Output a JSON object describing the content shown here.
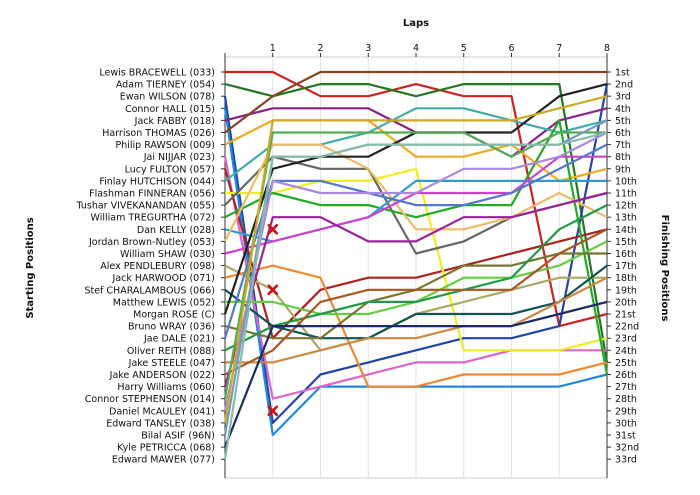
{
  "chart_data": {
    "type": "line",
    "title": "",
    "xlabel": "Laps",
    "ylabel_left": "Starting Positions",
    "ylabel_right": "Finishing Positions",
    "x": [
      0,
      1,
      2,
      3,
      4,
      5,
      6,
      7,
      8
    ],
    "x_tick_labels": [
      "1",
      "2",
      "3",
      "4",
      "5",
      "6",
      "7",
      "8"
    ],
    "ylim": [
      1,
      33
    ],
    "y_inverted": true,
    "grid": true,
    "starting_positions": [
      "Lewis BRACEWELL (033)",
      "Adam TIERNEY (054)",
      "Ewan WILSON (078)",
      "Connor HALL (015)",
      "Jack FABBY (018)",
      "Harrison THOMAS (026)",
      "Philip RAWSON (009)",
      "Jai NIJJAR (023)",
      "Lucy FULTON (057)",
      "Finlay HUTCHISON (044)",
      "Flashman FINNERAN (056)",
      "Tushar VIVEKANANDAN (055)",
      "William TREGURTHA (072)",
      "Dan KELLY (028)",
      "Jordan Brown-Nutley (053)",
      "William SHAW (030)",
      "Alex PENDLEBURY (098)",
      "Jack HARWOOD (071)",
      "Stef CHARALAMBOUS (066)",
      "Matthew LEWIS (052)",
      "Morgan ROSE (C)",
      "Bruno WRAY (036)",
      "Jae DALE (021)",
      "Oliver REITH (088)",
      "Jake STEELE (047)",
      "Jake ANDERSON (022)",
      "Harry Williams (060)",
      "Connor STEPHENSON (014)",
      "Daniel McAULEY (041)",
      "Edward TANSLEY (038)",
      "Bilal ASIF (96N)",
      "Kyle PETRICCA (068)",
      "Edward MAWER (077)"
    ],
    "finishing_labels": [
      "1st",
      "2nd",
      "3rd",
      "4th",
      "5th",
      "6th",
      "7th",
      "8th",
      "9th",
      "10th",
      "11th",
      "12th",
      "13th",
      "14th",
      "15th",
      "16th",
      "17th",
      "18th",
      "19th",
      "20th",
      "21st",
      "22nd",
      "23rd",
      "24th",
      "25th",
      "26th",
      "27th",
      "28th",
      "29th",
      "30th",
      "31st",
      "32nd",
      "33rd"
    ],
    "series": [
      {
        "color": "#cc2222",
        "values": [
          1,
          1,
          3,
          3,
          2,
          3,
          3,
          22,
          21
        ]
      },
      {
        "color": "#227722",
        "values": [
          2,
          3,
          2,
          2,
          3,
          2,
          2,
          2,
          25
        ]
      },
      {
        "color": "#2244aa",
        "values": [
          3,
          30,
          26,
          25,
          24,
          23,
          23,
          22,
          2
        ]
      },
      {
        "color": "#2288dd",
        "values": [
          4,
          31,
          27,
          27,
          27,
          27,
          27,
          27,
          26
        ]
      },
      {
        "color": "#882288",
        "values": [
          5,
          4,
          4,
          4,
          6,
          6,
          8,
          5,
          4
        ]
      },
      {
        "color": "#884422",
        "values": [
          6,
          3,
          1,
          1,
          1,
          1,
          1,
          1,
          1
        ]
      },
      {
        "color": "#eeaa22",
        "values": [
          7,
          5,
          5,
          5,
          8,
          8,
          7,
          10,
          9
        ]
      },
      {
        "color": "#dd66cc",
        "values": [
          8,
          28,
          27,
          26,
          25,
          25,
          24,
          24,
          24
        ]
      },
      {
        "color": "#aa2222",
        "values": [
          9,
          23,
          19,
          18,
          18,
          17,
          16,
          15,
          14
        ]
      },
      {
        "color": "#44aaaa",
        "values": [
          10,
          7,
          7,
          6,
          4,
          4,
          5,
          6,
          5
        ]
      },
      {
        "color": "#eeee22",
        "values": [
          11,
          11,
          10,
          10,
          9,
          24,
          24,
          24,
          23
        ]
      },
      {
        "color": "#666666",
        "values": [
          12,
          8,
          9,
          9,
          16,
          15,
          13,
          12,
          11
        ]
      },
      {
        "color": "#22aa22",
        "values": [
          13,
          11,
          12,
          12,
          13,
          12,
          12,
          5,
          26
        ]
      },
      {
        "color": "#3399cc",
        "values": [
          14,
          15,
          14,
          13,
          10,
          10,
          10,
          10,
          10
        ]
      },
      {
        "color": "#eebb66",
        "values": [
          15,
          7,
          7,
          9,
          14,
          14,
          13,
          11,
          13
        ]
      },
      {
        "color": "#cc44cc",
        "values": [
          16,
          15,
          14,
          13,
          11,
          11,
          11,
          8,
          8
        ]
      },
      {
        "color": "#aaaa66",
        "values": [
          17,
          19,
          24,
          23,
          21,
          20,
          19,
          18,
          18
        ]
      },
      {
        "color": "#ee8833",
        "values": [
          18,
          17,
          18,
          27,
          27,
          26,
          26,
          26,
          25
        ]
      },
      {
        "color": "#115555",
        "values": [
          19,
          22,
          23,
          23,
          21,
          21,
          21,
          20,
          17
        ]
      },
      {
        "color": "#66cc44",
        "values": [
          20,
          20,
          21,
          21,
          20,
          18,
          18,
          17,
          15
        ]
      },
      {
        "color": "#222222",
        "values": [
          21,
          9,
          8,
          8,
          6,
          6,
          6,
          3,
          2
        ]
      },
      {
        "color": "#777733",
        "values": [
          22,
          23,
          23,
          20,
          19,
          17,
          17,
          16,
          16
        ]
      },
      {
        "color": "#5577cc",
        "values": [
          23,
          10,
          10,
          11,
          12,
          12,
          11,
          9,
          7
        ]
      },
      {
        "color": "#229944",
        "values": [
          24,
          22,
          21,
          20,
          20,
          19,
          18,
          14,
          12
        ]
      },
      {
        "color": "#cc8844",
        "values": [
          25,
          25,
          24,
          23,
          23,
          22,
          22,
          20,
          18
        ]
      },
      {
        "color": "#aa5522",
        "values": [
          26,
          24,
          20,
          19,
          19,
          19,
          19,
          16,
          14
        ]
      },
      {
        "color": "#992299",
        "values": [
          27,
          13,
          13,
          15,
          15,
          13,
          13,
          12,
          11
        ]
      },
      {
        "color": "#55aa55",
        "values": [
          28,
          6,
          6,
          6,
          6,
          6,
          8,
          6,
          6
        ]
      },
      {
        "color": "#aa88dd",
        "values": [
          29,
          10,
          11,
          11,
          11,
          9,
          9,
          8,
          6
        ]
      },
      {
        "color": "#ccaa22",
        "values": [
          30,
          5,
          5,
          5,
          5,
          5,
          5,
          4,
          3
        ]
      },
      {
        "color": "#7799bb",
        "values": [
          31,
          8,
          8,
          7,
          7,
          7,
          7,
          7,
          5
        ]
      },
      {
        "color": "#1a2a66",
        "values": [
          32,
          22,
          22,
          22,
          22,
          22,
          22,
          21,
          20
        ]
      },
      {
        "color": "#88bbaa",
        "values": [
          33,
          8,
          8,
          7,
          7,
          7,
          7,
          7,
          6
        ]
      }
    ],
    "retirements": [
      {
        "lap": 1,
        "position": 14
      },
      {
        "lap": 1,
        "position": 19
      },
      {
        "lap": 1,
        "position": 29
      }
    ]
  }
}
